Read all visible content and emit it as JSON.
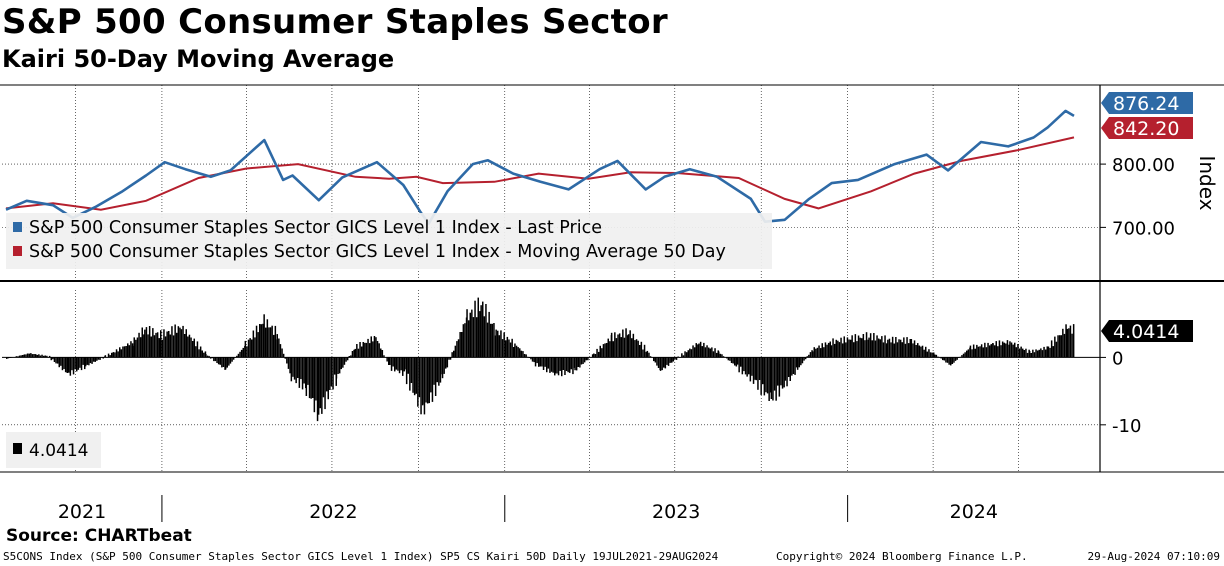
{
  "title": "S&P 500 Consumer Staples Sector",
  "subtitle": "Kairi 50-Day Moving Average",
  "source": "Source: CHARTbeat",
  "footer": {
    "left": "S5CONS Index (S&P 500 Consumer Staples Sector GICS Level 1 Index) SP5 CS Kairi 50D  Daily 19JUL2021-29AUG2024",
    "mid": "Copyright© 2024 Bloomberg Finance L.P.",
    "right": "29-Aug-2024 07:10:09"
  },
  "colors": {
    "price": "#2e6aa6",
    "ma": "#b5202e",
    "kairi": "#000000",
    "grid": "#000000"
  },
  "chart_data": [
    {
      "type": "line",
      "panel": "upper",
      "ylabel": "Index",
      "ylim": [
        620,
        925
      ],
      "yticks": [
        700,
        800
      ],
      "ytick_labels": [
        "700.00",
        "800.00"
      ],
      "xlim": [
        "2021-07-19",
        "2024-08-29"
      ],
      "x_labels": [
        "2021",
        "2022",
        "2023",
        "2024"
      ],
      "grid": true,
      "legend_position": "bottom-left",
      "series": [
        {
          "name": "S&P 500 Consumer Staples Sector GICS Level 1 Index - Last Price",
          "last_value_label": "876.24",
          "points": [
            [
              "2021-07-19",
              728
            ],
            [
              "2021-08-10",
              742
            ],
            [
              "2021-09-07",
              735
            ],
            [
              "2021-09-28",
              715
            ],
            [
              "2021-10-22",
              732
            ],
            [
              "2021-11-19",
              756
            ],
            [
              "2021-12-15",
              782
            ],
            [
              "2022-01-04",
              803
            ],
            [
              "2022-01-26",
              792
            ],
            [
              "2022-02-22",
              780
            ],
            [
              "2022-03-15",
              790
            ],
            [
              "2022-04-05",
              818
            ],
            [
              "2022-04-20",
              838
            ],
            [
              "2022-05-10",
              775
            ],
            [
              "2022-05-20",
              782
            ],
            [
              "2022-06-17",
              743
            ],
            [
              "2022-07-12",
              779
            ],
            [
              "2022-08-18",
              803
            ],
            [
              "2022-09-15",
              767
            ],
            [
              "2022-10-03",
              725
            ],
            [
              "2022-10-12",
              706
            ],
            [
              "2022-11-01",
              757
            ],
            [
              "2022-11-28",
              800
            ],
            [
              "2022-12-14",
              806
            ],
            [
              "2023-01-10",
              785
            ],
            [
              "2023-02-08",
              772
            ],
            [
              "2023-03-10",
              760
            ],
            [
              "2023-04-12",
              792
            ],
            [
              "2023-05-01",
              805
            ],
            [
              "2023-05-31",
              760
            ],
            [
              "2023-06-20",
              780
            ],
            [
              "2023-07-17",
              792
            ],
            [
              "2023-08-15",
              780
            ],
            [
              "2023-09-20",
              745
            ],
            [
              "2023-10-05",
              709
            ],
            [
              "2023-10-26",
              712
            ],
            [
              "2023-11-21",
              745
            ],
            [
              "2023-12-15",
              770
            ],
            [
              "2024-01-12",
              775
            ],
            [
              "2024-02-20",
              800
            ],
            [
              "2024-03-25",
              815
            ],
            [
              "2024-04-17",
              790
            ],
            [
              "2024-05-22",
              835
            ],
            [
              "2024-06-20",
              828
            ],
            [
              "2024-07-17",
              842
            ],
            [
              "2024-08-01",
              858
            ],
            [
              "2024-08-20",
              884
            ],
            [
              "2024-08-29",
              876.24
            ]
          ]
        },
        {
          "name": "S&P 500 Consumer Staples Sector GICS Level 1 Index - Moving Average 50 Day",
          "last_value_label": "842.20",
          "points": [
            [
              "2021-07-19",
              730
            ],
            [
              "2021-09-07",
              738
            ],
            [
              "2021-10-28",
              728
            ],
            [
              "2021-12-15",
              742
            ],
            [
              "2022-02-09",
              778
            ],
            [
              "2022-04-01",
              793
            ],
            [
              "2022-05-26",
              800
            ],
            [
              "2022-07-26",
              780
            ],
            [
              "2022-08-31",
              777
            ],
            [
              "2022-09-29",
              780
            ],
            [
              "2022-10-27",
              770
            ],
            [
              "2022-12-21",
              772
            ],
            [
              "2023-02-06",
              785
            ],
            [
              "2023-03-31",
              777
            ],
            [
              "2023-05-15",
              787
            ],
            [
              "2023-07-03",
              786
            ],
            [
              "2023-09-07",
              778
            ],
            [
              "2023-10-26",
              745
            ],
            [
              "2023-12-01",
              730
            ],
            [
              "2024-01-26",
              757
            ],
            [
              "2024-03-12",
              785
            ],
            [
              "2024-05-01",
              805
            ],
            [
              "2024-06-30",
              822
            ],
            [
              "2024-08-29",
              842.2
            ]
          ]
        }
      ]
    },
    {
      "type": "bar",
      "panel": "lower",
      "title": "",
      "ylim": [
        -17,
        10
      ],
      "yticks": [
        0,
        -10
      ],
      "ytick_labels": [
        "0",
        "-10"
      ],
      "grid": true,
      "legend_position": "bottom-left",
      "series": [
        {
          "name": "4.0414",
          "last_value_label": "4.0414",
          "points": [
            [
              "2021-07-19",
              -0.2
            ],
            [
              "2021-08-12",
              0.6
            ],
            [
              "2021-09-01",
              0.2
            ],
            [
              "2021-09-23",
              -2.5
            ],
            [
              "2021-10-11",
              -1.3
            ],
            [
              "2021-11-01",
              0.1
            ],
            [
              "2021-11-30",
              2.3
            ],
            [
              "2021-12-13",
              4.2
            ],
            [
              "2021-12-30",
              3.3
            ],
            [
              "2022-01-21",
              4.5
            ],
            [
              "2022-02-16",
              0.5
            ],
            [
              "2022-03-09",
              -1.8
            ],
            [
              "2022-03-30",
              1.8
            ],
            [
              "2022-04-19",
              5.5
            ],
            [
              "2022-05-03",
              3.5
            ],
            [
              "2022-05-18",
              -3
            ],
            [
              "2022-06-03",
              -4.5
            ],
            [
              "2022-06-16",
              -8.5
            ],
            [
              "2022-07-05",
              -3
            ],
            [
              "2022-07-25",
              1.5
            ],
            [
              "2022-08-16",
              3
            ],
            [
              "2022-08-31",
              -1.5
            ],
            [
              "2022-09-16",
              -2.5
            ],
            [
              "2022-10-05",
              -8
            ],
            [
              "2022-10-26",
              -3
            ],
            [
              "2022-11-21",
              6
            ],
            [
              "2022-12-06",
              8
            ],
            [
              "2022-12-22",
              4
            ],
            [
              "2023-01-11",
              2
            ],
            [
              "2023-02-02",
              -1
            ],
            [
              "2023-02-23",
              -2.5
            ],
            [
              "2023-03-16",
              -2
            ],
            [
              "2023-04-05",
              0.5
            ],
            [
              "2023-04-24",
              3
            ],
            [
              "2023-05-12",
              3.8
            ],
            [
              "2023-06-01",
              1
            ],
            [
              "2023-06-15",
              -2
            ],
            [
              "2023-07-06",
              0.2
            ],
            [
              "2023-07-26",
              2.2
            ],
            [
              "2023-08-16",
              0.8
            ],
            [
              "2023-09-05",
              -1.5
            ],
            [
              "2023-09-25",
              -3.8
            ],
            [
              "2023-10-11",
              -6.2
            ],
            [
              "2023-10-26",
              -4
            ],
            [
              "2023-11-08",
              -1.8
            ],
            [
              "2023-11-24",
              1.2
            ],
            [
              "2023-12-14",
              2.3
            ],
            [
              "2024-01-05",
              2.8
            ],
            [
              "2024-01-23",
              3.2
            ],
            [
              "2024-02-12",
              2.6
            ],
            [
              "2024-03-08",
              2.5
            ],
            [
              "2024-04-02",
              0.5
            ],
            [
              "2024-04-19",
              -1.2
            ],
            [
              "2024-05-10",
              1.5
            ],
            [
              "2024-06-03",
              2
            ],
            [
              "2024-06-21",
              2.3
            ],
            [
              "2024-07-12",
              0.8
            ],
            [
              "2024-08-01",
              1.5
            ],
            [
              "2024-08-21",
              4.5
            ],
            [
              "2024-08-29",
              4.04
            ]
          ]
        }
      ]
    }
  ]
}
